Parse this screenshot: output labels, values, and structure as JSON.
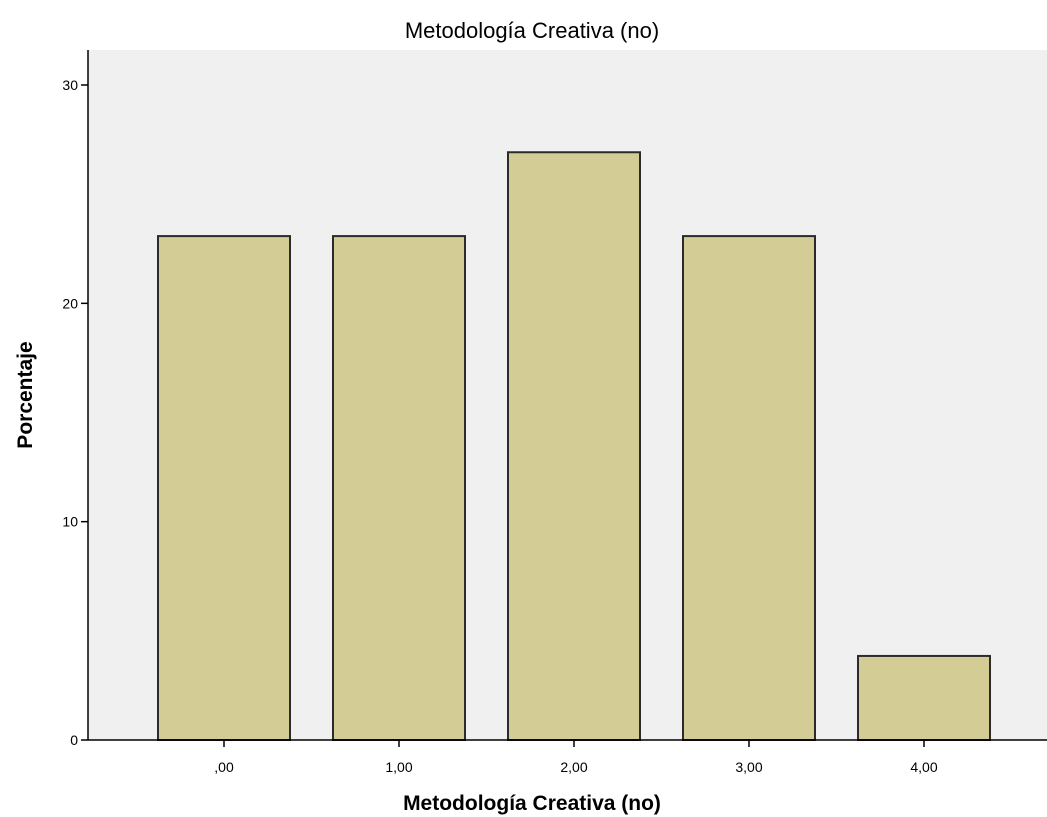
{
  "chart_data": {
    "type": "bar",
    "title": "Metodología Creativa (no)",
    "xlabel": "Metodología Creativa (no)",
    "ylabel": "Porcentaje",
    "categories": [
      ",00",
      "1,00",
      "2,00",
      "3,00",
      "4,00"
    ],
    "values": [
      23.08,
      23.08,
      26.92,
      23.08,
      3.85
    ],
    "ylim": [
      0,
      30
    ],
    "yticks": [
      "0",
      "10",
      "20",
      "30"
    ],
    "grid": false,
    "legend": "none",
    "colors": {
      "bar_fill": "#d3cd95",
      "bar_stroke": "#2b2b2b",
      "plot_background": "#f0f0f0",
      "axis": "#000000"
    }
  }
}
